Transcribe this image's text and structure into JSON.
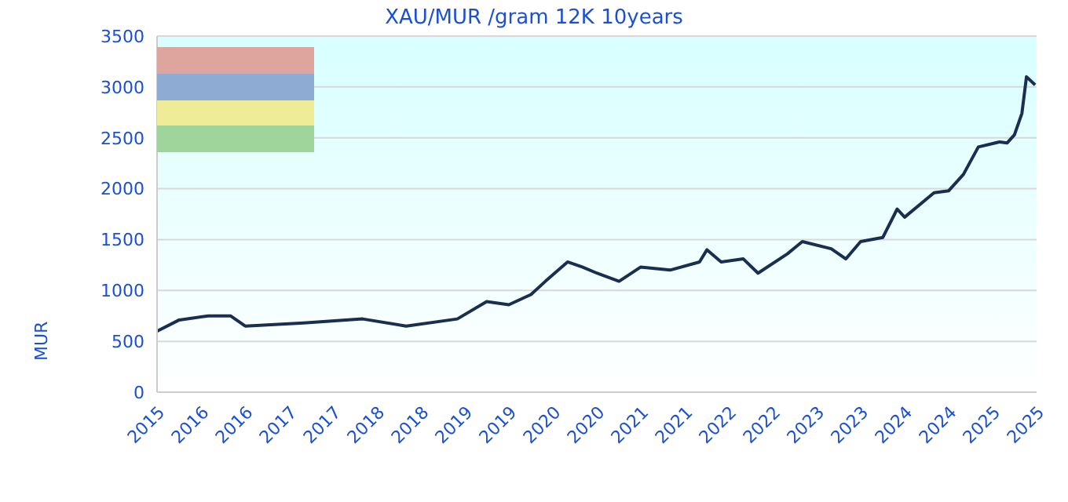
{
  "chart_data": {
    "type": "line",
    "title": "XAU/MUR /gram 12K 10years",
    "ylabel": "MUR",
    "x": [
      "2015-10",
      "2016-01",
      "2016-05",
      "2016-08",
      "2016-10",
      "2017-06",
      "2018-02",
      "2018-08",
      "2019-03",
      "2019-07",
      "2019-10",
      "2020-01",
      "2020-03",
      "2020-06",
      "2020-08",
      "2020-10",
      "2021-01",
      "2021-04",
      "2021-08",
      "2021-12",
      "2022-01",
      "2022-03",
      "2022-06",
      "2022-08",
      "2022-12",
      "2023-02",
      "2023-06",
      "2023-08",
      "2023-10",
      "2024-01",
      "2024-03",
      "2024-04",
      "2024-08",
      "2024-10",
      "2024-12",
      "2025-02",
      "2025-05",
      "2025-06",
      "2025-07",
      "2025-08-01",
      "2025-08-20",
      "2025-09-25"
    ],
    "series": [
      {
        "color": "#1a2e50",
        "values": [
          600,
          710,
          750,
          750,
          650,
          680,
          720,
          650,
          720,
          890,
          860,
          960,
          1090,
          1280,
          1230,
          1170,
          1090,
          1230,
          1200,
          1280,
          1400,
          1280,
          1310,
          1170,
          1360,
          1480,
          1410,
          1310,
          1480,
          1520,
          1800,
          1720,
          1960,
          1980,
          2140,
          2410,
          2460,
          2450,
          2530,
          2740,
          3100,
          3020
        ]
      }
    ],
    "xlim": [
      "2015-10",
      "2025-10"
    ],
    "xticks": [
      {
        "value": "2015-10",
        "label": "2015"
      },
      {
        "value": "2016-04",
        "label": "2016"
      },
      {
        "value": "2016-10",
        "label": "2016"
      },
      {
        "value": "2017-04",
        "label": "2017"
      },
      {
        "value": "2017-10",
        "label": "2017"
      },
      {
        "value": "2018-04",
        "label": "2018"
      },
      {
        "value": "2018-10",
        "label": "2018"
      },
      {
        "value": "2019-04",
        "label": "2019"
      },
      {
        "value": "2019-10",
        "label": "2019"
      },
      {
        "value": "2020-04",
        "label": "2020"
      },
      {
        "value": "2020-10",
        "label": "2020"
      },
      {
        "value": "2021-04",
        "label": "2021"
      },
      {
        "value": "2021-10",
        "label": "2021"
      },
      {
        "value": "2022-04",
        "label": "2022"
      },
      {
        "value": "2022-10",
        "label": "2022"
      },
      {
        "value": "2023-04",
        "label": "2023"
      },
      {
        "value": "2023-10",
        "label": "2023"
      },
      {
        "value": "2024-04",
        "label": "2024"
      },
      {
        "value": "2024-10",
        "label": "2024"
      },
      {
        "value": "2025-04",
        "label": "2025"
      },
      {
        "value": "2025-10",
        "label": "2025"
      }
    ],
    "ylim": [
      0,
      3500
    ],
    "yticks": [
      0,
      500,
      1000,
      1500,
      2000,
      2500,
      3000,
      3500
    ],
    "grid": "y",
    "marker": "none",
    "line_style": "solid"
  }
}
